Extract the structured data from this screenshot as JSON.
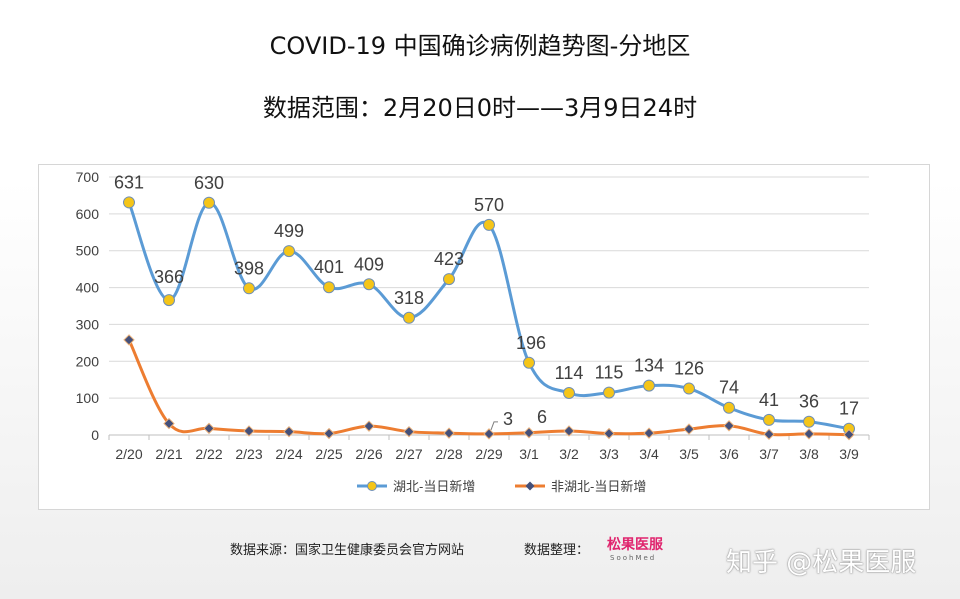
{
  "chart_data": {
    "type": "line",
    "title": "COVID-19 中国确诊病例趋势图-分地区",
    "subtitle": "数据范围：2月20日0时——3月9日24时",
    "categories": [
      "2/20",
      "2/21",
      "2/22",
      "2/23",
      "2/24",
      "2/25",
      "2/26",
      "2/27",
      "2/28",
      "2/29",
      "3/1",
      "3/2",
      "3/3",
      "3/4",
      "3/5",
      "3/6",
      "3/7",
      "3/8",
      "3/9"
    ],
    "ylim": [
      0,
      700
    ],
    "yticks": [
      0,
      100,
      200,
      300,
      400,
      500,
      600,
      700
    ],
    "grid": "horizontal",
    "legend_position": "bottom",
    "series": [
      {
        "name": "湖北-当日新增",
        "values": [
          631,
          366,
          630,
          398,
          499,
          401,
          409,
          318,
          423,
          570,
          196,
          114,
          115,
          134,
          126,
          74,
          41,
          36,
          17
        ],
        "line_color": "#5b9bd5",
        "marker_color": "#f5c518",
        "marker": "circle",
        "labels": [
          "631",
          "366",
          "630",
          "398",
          "499",
          "401",
          "409",
          "318",
          "423",
          "570",
          "196",
          "114",
          "115",
          "134",
          "126",
          "74",
          "41",
          "36",
          "17"
        ]
      },
      {
        "name": "非湖北-当日新增",
        "values": [
          258,
          31,
          18,
          11,
          9,
          4,
          24,
          9,
          5,
          3,
          6,
          11,
          4,
          5,
          16,
          25,
          2,
          3,
          1
        ],
        "line_color": "#ed7d31",
        "marker_color": "#44507a",
        "marker": "diamond",
        "labeled_points": [
          {
            "index": 9,
            "text": "3"
          },
          {
            "index": 10,
            "text": "6"
          }
        ]
      }
    ]
  },
  "footer": {
    "source": "数据来源：国家卫生健康委员会官方网站",
    "organizer": "数据整理：",
    "logo_text": "松果医服",
    "logo_sub": "SoohMed"
  },
  "watermark": "知乎 @松果医服"
}
